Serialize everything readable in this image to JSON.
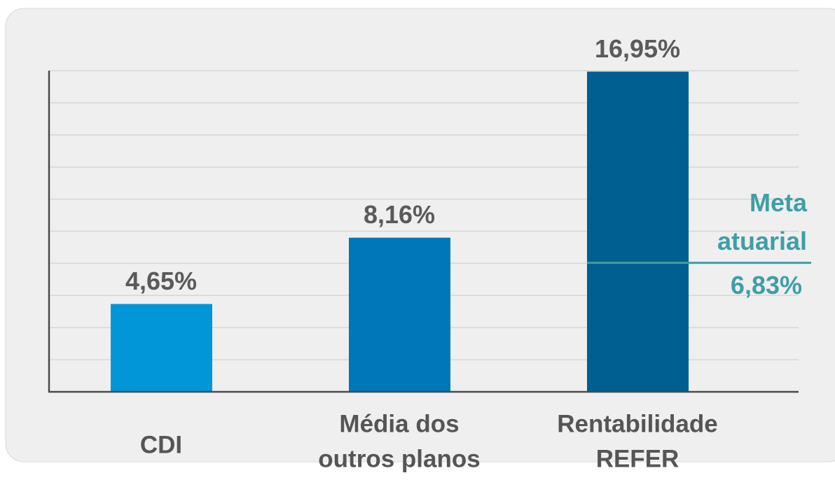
{
  "chart_data": {
    "type": "bar",
    "categories": [
      [
        "CDI"
      ],
      [
        "Média dos",
        "outros planos"
      ],
      [
        "Rentabilidade",
        "REFER"
      ]
    ],
    "values": [
      4.65,
      8.16,
      16.95
    ],
    "value_labels": [
      "4,65%",
      "8,16%",
      "16,95%"
    ],
    "colors": [
      "#0096d8",
      "#0077b8",
      "#005f91"
    ],
    "ylim": [
      0,
      17
    ],
    "grid": true,
    "annotation": {
      "label": [
        "Meta",
        "atuarial"
      ],
      "value": 6.83,
      "value_label": "6,83%",
      "color": "#3f9ea6"
    }
  }
}
